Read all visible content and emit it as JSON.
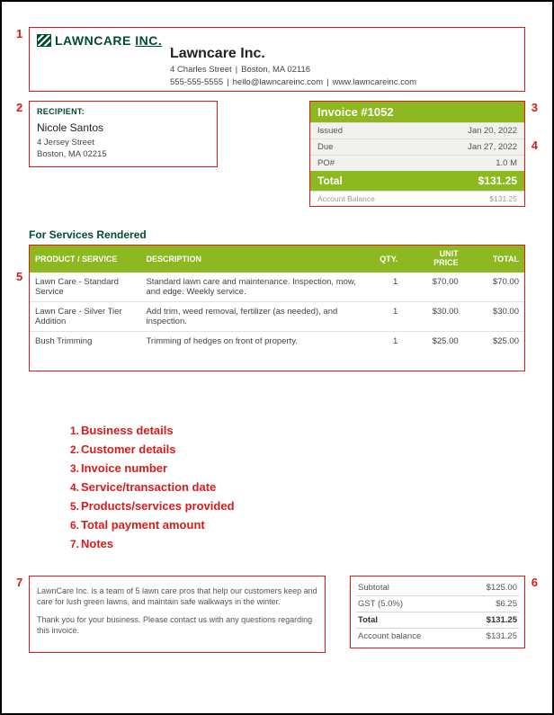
{
  "header": {
    "logo_text1": "LAWNCARE",
    "logo_text2": "INC.",
    "company_name": "Lawncare Inc.",
    "address_line": "4 Charles Street",
    "city_line": "Boston, MA 02116",
    "phone": "555-555-5555",
    "email": "hello@lawncareinc.com",
    "website": "www.lawncareinc.com"
  },
  "recipient": {
    "label": "RECIPIENT:",
    "name": "Nicole Santos",
    "addr1": "4 Jersey Street",
    "addr2": "Boston, MA 02215"
  },
  "invoice": {
    "number_label": "Invoice #1052",
    "issued_label": "Issued",
    "issued_value": "Jan 20, 2022",
    "due_label": "Due",
    "due_value": "Jan 27, 2022",
    "po_label": "PO#",
    "po_value": "1.0 M",
    "total_label": "Total",
    "total_value": "$131.25",
    "balance_label": "Account Balance",
    "balance_value": "$131.25"
  },
  "services": {
    "title": "For Services Rendered",
    "headers": {
      "product": "PRODUCT / SERVICE",
      "description": "DESCRIPTION",
      "qty": "QTY.",
      "unit": "UNIT PRICE",
      "total": "TOTAL"
    },
    "rows": [
      {
        "name": "Lawn Care - Standard Service",
        "desc": "Standard lawn care and maintenance. Inspection, mow, and edge. Weekly service.",
        "qty": "1",
        "unit": "$70.00",
        "total": "$70.00"
      },
      {
        "name": "Lawn Care - Silver Tier Addition",
        "desc": "Add trim, weed removal, fertilizer (as needed), and inspection.",
        "qty": "1",
        "unit": "$30.00",
        "total": "$30.00"
      },
      {
        "name": "Bush Trimming",
        "desc": "Trimming of hedges on front of property.",
        "qty": "1",
        "unit": "$25.00",
        "total": "$25.00"
      }
    ]
  },
  "legend": [
    "Business details",
    "Customer details",
    "Invoice number",
    "Service/transaction date",
    "Products/services provided",
    "Total payment amount",
    "Notes"
  ],
  "notes": {
    "p1": "LawnCare Inc. is a team of 5 lawn care pros that help our customers keep and care for lush green lawns, and maintain safe walkways in the winter.",
    "p2": "Thank you for your business. Please contact us with any questions regarding this invoice."
  },
  "totals": {
    "subtotal_label": "Subtotal",
    "subtotal_value": "$125.00",
    "gst_label": "GST (5.0%)",
    "gst_value": "$6.25",
    "total_label": "Total",
    "total_value": "$131.25",
    "balance_label": "Account balance",
    "balance_value": "$131.25"
  },
  "annotation_numbers": {
    "n1": "1",
    "n2": "2",
    "n3": "3",
    "n4": "4",
    "n5": "5",
    "n6": "6",
    "n7": "7"
  }
}
